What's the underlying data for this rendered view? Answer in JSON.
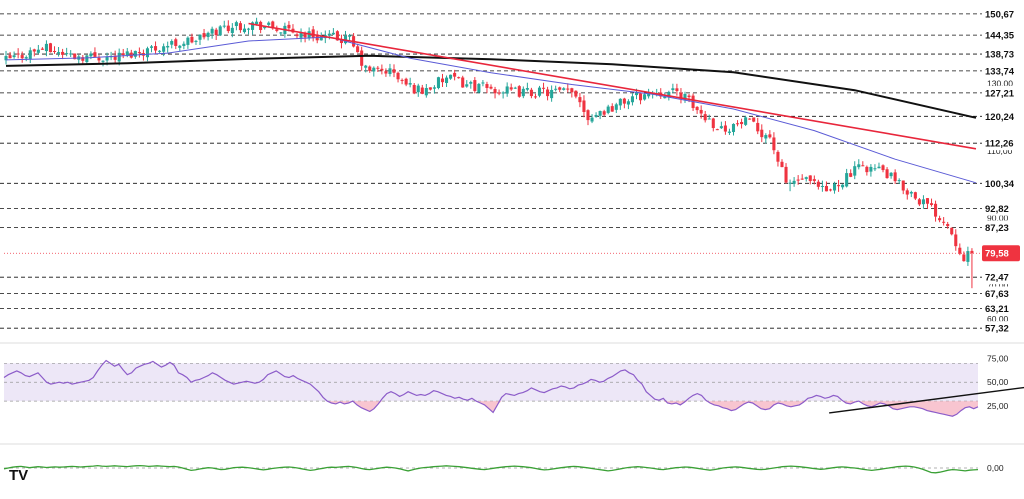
{
  "colors": {
    "up": "#26a69a",
    "down": "#ef3340",
    "trend": "#e8263b",
    "ma_fast": "#5b5bd6",
    "ma_slow": "#111111",
    "rsi_line": "#8c5cc9",
    "rsi_band": "#ede7f7",
    "osc_line": "#3aa035",
    "last_price_bg": "#ef3340",
    "label_bg": "#ffffff",
    "grid_dash": "#111111"
  },
  "logo": {
    "text": "TV",
    "icon": "tradingview-logo-icon"
  },
  "chart_data": [
    {
      "type": "candlestick",
      "panel": "price",
      "ylim": [
        55.0,
        153.0
      ],
      "grid": true,
      "candle_count": 240,
      "open_start": 136.5,
      "close_path": [
        [
          0,
          136.5
        ],
        [
          10,
          140.5
        ],
        [
          18,
          138.2
        ],
        [
          28,
          137.8
        ],
        [
          40,
          141.2
        ],
        [
          48,
          143.0
        ],
        [
          55,
          146.8
        ],
        [
          62,
          147.8
        ],
        [
          70,
          145.6
        ],
        [
          78,
          144.1
        ],
        [
          86,
          142.9
        ],
        [
          90,
          134.0
        ],
        [
          96,
          133.7
        ],
        [
          100,
          129.5
        ],
        [
          104,
          127.8
        ],
        [
          110,
          131.5
        ],
        [
          118,
          128.9
        ],
        [
          126,
          127.4
        ],
        [
          136,
          127.4
        ],
        [
          142,
          127.2
        ],
        [
          145,
          120.2
        ],
        [
          150,
          122.5
        ],
        [
          156,
          125.8
        ],
        [
          162,
          127.6
        ],
        [
          168,
          127.0
        ],
        [
          172,
          122.0
        ],
        [
          178,
          116.5
        ],
        [
          184,
          118.5
        ],
        [
          190,
          114.2
        ],
        [
          194,
          100.2
        ],
        [
          198,
          101.6
        ],
        [
          204,
          97.5
        ],
        [
          208,
          101.5
        ],
        [
          213,
          105.5
        ],
        [
          218,
          104.0
        ],
        [
          222,
          99.8
        ],
        [
          226,
          96.6
        ],
        [
          230,
          92.8
        ],
        [
          234,
          88.2
        ],
        [
          236,
          83.0
        ],
        [
          238,
          78.8
        ],
        [
          240,
          79.58
        ]
      ],
      "spikes": [
        {
          "index": 194,
          "low": 98.0
        },
        {
          "index": 206,
          "low": 97.8
        },
        {
          "index": 239,
          "low": 69.2
        }
      ],
      "last_price": "79,58",
      "price_labels": [
        "150,67",
        "144,35",
        "138,73",
        "133,74",
        "127,21",
        "120,24",
        "112,26",
        "100,34",
        "92,82",
        "87,23",
        "72,47",
        "67,63",
        "63,21",
        "57,32"
      ],
      "price_levels": [
        150.67,
        144.35,
        138.73,
        133.74,
        127.21,
        120.24,
        112.26,
        100.34,
        92.82,
        87.23,
        72.47,
        67.63,
        63.21,
        57.32
      ],
      "axis_ticks": [
        {
          "label": "130,00",
          "value": 130.0
        },
        {
          "label": "110,00",
          "value": 110.0
        },
        {
          "label": "90,00",
          "value": 90.0
        },
        {
          "label": "70,00",
          "value": 70.0
        },
        {
          "label": "60,00",
          "value": 60.0
        }
      ],
      "trendline": {
        "from": [
          60,
          147.8
        ],
        "to": [
          240,
          110.6
        ]
      },
      "ma_fast_path": [
        [
          0,
          137.0
        ],
        [
          20,
          137.6
        ],
        [
          40,
          139.0
        ],
        [
          60,
          142.6
        ],
        [
          80,
          143.8
        ],
        [
          100,
          137.5
        ],
        [
          120,
          133.2
        ],
        [
          140,
          129.7
        ],
        [
          160,
          126.8
        ],
        [
          180,
          122.4
        ],
        [
          200,
          116.0
        ],
        [
          220,
          107.5
        ],
        [
          240,
          100.5
        ]
      ],
      "ma_slow_path": [
        [
          0,
          135.2
        ],
        [
          30,
          136.0
        ],
        [
          60,
          137.3
        ],
        [
          90,
          138.2
        ],
        [
          120,
          137.2
        ],
        [
          150,
          135.7
        ],
        [
          180,
          133.3
        ],
        [
          210,
          128.0
        ],
        [
          240,
          119.8
        ]
      ]
    },
    {
      "type": "line",
      "panel": "rsi",
      "ylim": [
        10.0,
        82.0
      ],
      "band": [
        30.0,
        70.0
      ],
      "tick_labels": [
        "75,00",
        "50,00",
        "25,00"
      ],
      "tick_values": [
        75.0,
        50.0,
        25.0
      ],
      "values": [
        55,
        58,
        60,
        62,
        60,
        57,
        56,
        58,
        60,
        55,
        50,
        48,
        49,
        50,
        49,
        50,
        48,
        49,
        50,
        51,
        52,
        55,
        62,
        68,
        73,
        70,
        67,
        69,
        63,
        58,
        60,
        65,
        67,
        69,
        70,
        72,
        69,
        66,
        68,
        71,
        68,
        60,
        58,
        55,
        50,
        52,
        53,
        55,
        57,
        60,
        58,
        55,
        52,
        50,
        48,
        49,
        50,
        51,
        50,
        49,
        50,
        53,
        58,
        60,
        62,
        59,
        56,
        55,
        57,
        54,
        52,
        50,
        48,
        44,
        40,
        34,
        30,
        28,
        27,
        29,
        27,
        28,
        30,
        26,
        23,
        21,
        19,
        22,
        27,
        33,
        38,
        40,
        38,
        35,
        37,
        40,
        38,
        36,
        37,
        36,
        38,
        41,
        40,
        38,
        36,
        35,
        33,
        34,
        32,
        31,
        33,
        30,
        28,
        26,
        22,
        18,
        26,
        34,
        38,
        37,
        36,
        38,
        39,
        41,
        44,
        42,
        40,
        39,
        41,
        43,
        44,
        46,
        45,
        43,
        44,
        47,
        48,
        50,
        53,
        52,
        50,
        51,
        54,
        56,
        59,
        62,
        63,
        60,
        58,
        52,
        48,
        40,
        36,
        32,
        31,
        33,
        28,
        27,
        28,
        26,
        29,
        33,
        36,
        38,
        36,
        31,
        28,
        26,
        25,
        23,
        22,
        20,
        21,
        24,
        27,
        29,
        28,
        25,
        22,
        21,
        22,
        26,
        28,
        27,
        25,
        24,
        25,
        26,
        29,
        33,
        34,
        36,
        35,
        33,
        34,
        36,
        35,
        31,
        28,
        27,
        29,
        30,
        27,
        25,
        24,
        26,
        28,
        27,
        25,
        22,
        21,
        22,
        23,
        24,
        24,
        23,
        22,
        20,
        19,
        18,
        17,
        16,
        15,
        14,
        16,
        20,
        23,
        24,
        22,
        24
      ],
      "trendline": {
        "from": [
          194,
          17.5
        ],
        "to": [
          240,
          44.5
        ]
      }
    },
    {
      "type": "line",
      "panel": "oscillator",
      "ylim": [
        -1.0,
        1.0
      ],
      "tick_labels": [
        "0,00"
      ],
      "tick_values": [
        0.0
      ],
      "values": [
        -0.05,
        0.0,
        0.05,
        0.08,
        0.1,
        0.06,
        0.02,
        0.05,
        0.08,
        0.06,
        0.03,
        0.05,
        0.07,
        0.05,
        0.06,
        0.08,
        0.1,
        0.09,
        0.06,
        0.08,
        0.1,
        0.12,
        0.15,
        0.12,
        0.1,
        0.12,
        0.14,
        0.12,
        0.1,
        0.09,
        0.12,
        0.14,
        0.15,
        0.13,
        0.1,
        0.12,
        0.14,
        0.12,
        0.1,
        0.08,
        0.1,
        0.06,
        0.0,
        -0.08,
        -0.15,
        -0.12,
        -0.06,
        -0.02,
        0.02,
        0.0,
        -0.05,
        -0.1,
        -0.08,
        -0.03,
        0.02,
        0.04,
        0.05,
        0.03,
        0.0,
        -0.04,
        -0.08,
        -0.12,
        -0.08,
        -0.03,
        0.0,
        0.03,
        0.05,
        0.06,
        0.04,
        0.0,
        -0.05,
        -0.1,
        -0.15,
        -0.12,
        -0.06,
        -0.02,
        0.03,
        0.05,
        0.04,
        0.06,
        0.08,
        0.1,
        0.07,
        0.03,
        -0.03,
        -0.08,
        -0.1,
        -0.06,
        -0.02,
        0.02,
        0.05,
        0.03,
        0.0,
        -0.05,
        -0.12,
        -0.18,
        -0.12,
        -0.05,
        0.0,
        0.03,
        0.05,
        0.08,
        0.1,
        0.12,
        0.14,
        0.12,
        0.1,
        0.08,
        0.05,
        0.02,
        -0.02,
        -0.05,
        -0.08,
        -0.1,
        -0.06,
        -0.02,
        0.02,
        0.05,
        0.08,
        0.1,
        0.12,
        0.1,
        0.08,
        0.05,
        0.02,
        -0.03,
        -0.08,
        -0.12,
        -0.1,
        -0.06,
        -0.02,
        0.02,
        0.05,
        0.08,
        0.1,
        0.08,
        0.05,
        0.02,
        -0.02,
        -0.06,
        -0.1,
        -0.14,
        -0.18,
        -0.15,
        -0.1,
        -0.05,
        0.0,
        0.04,
        0.06,
        0.08,
        0.06,
        0.03,
        0.0,
        -0.04,
        -0.08,
        -0.1,
        -0.06,
        -0.02,
        0.02,
        0.04,
        0.06,
        0.05,
        0.02,
        -0.02,
        -0.06,
        -0.1,
        -0.14,
        -0.1,
        -0.05,
        0.0,
        0.03,
        0.05,
        0.07,
        0.05,
        0.02,
        -0.02,
        -0.05,
        -0.08,
        -0.1,
        -0.08,
        -0.04,
        0.0,
        0.04,
        0.08,
        0.1,
        0.12,
        0.1,
        0.08,
        0.05,
        0.02,
        -0.02,
        -0.05,
        -0.08,
        -0.06,
        -0.02,
        0.02,
        0.05,
        0.07,
        0.05,
        0.02,
        0.0,
        -0.04,
        -0.08,
        -0.12,
        -0.15,
        -0.12,
        -0.08,
        -0.04,
        0.0,
        0.04,
        0.08,
        0.1,
        0.12,
        0.1,
        0.06,
        0.0,
        -0.08,
        -0.18,
        -0.28,
        -0.3,
        -0.26,
        -0.2,
        -0.14,
        -0.1,
        -0.12,
        -0.15,
        -0.18,
        -0.14,
        -0.12,
        -0.1
      ]
    }
  ]
}
